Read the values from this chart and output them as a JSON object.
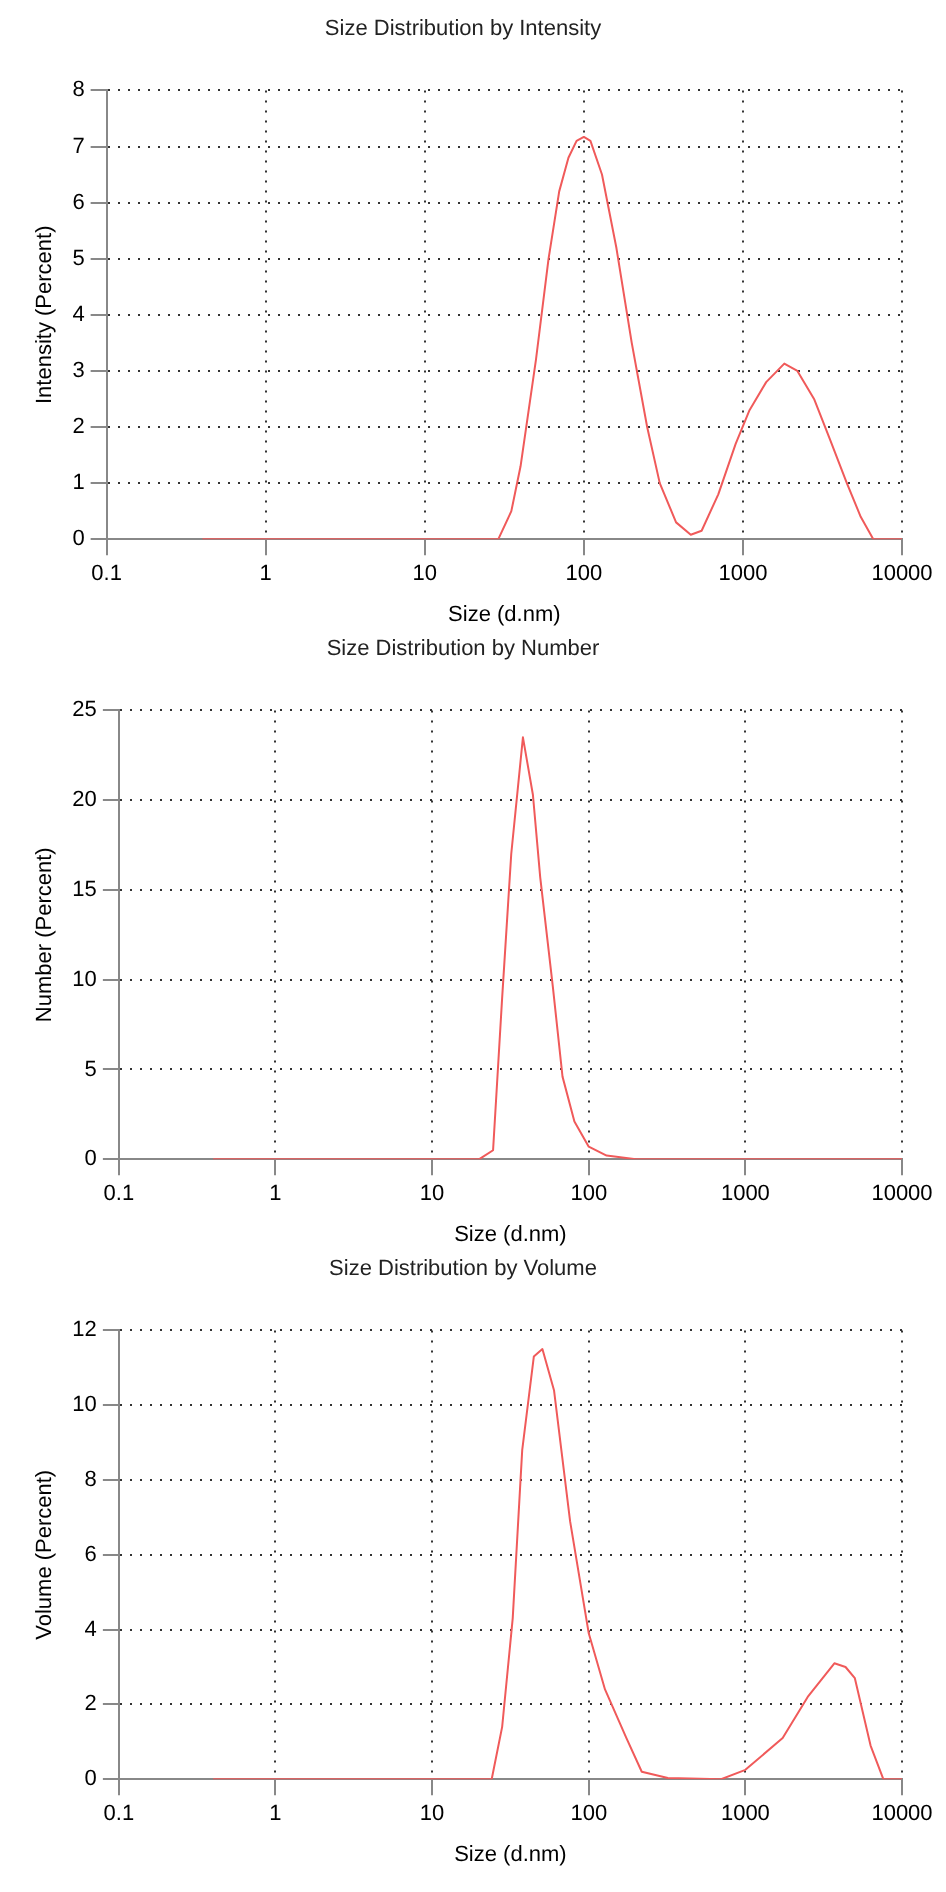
{
  "chart_data": [
    {
      "type": "line",
      "title": "Size Distribution by Intensity",
      "xlabel": "Size (d.nm)",
      "ylabel": "Intensity (Percent)",
      "log": "x",
      "grid": true,
      "marker": "none",
      "xlim": [
        0.1,
        10000
      ],
      "xticks": [
        0.1,
        1,
        10,
        100,
        1000,
        10000
      ],
      "ylim": [
        0,
        8
      ],
      "yticks": [
        0,
        1,
        2,
        3,
        4,
        5,
        6,
        7,
        8
      ],
      "series": [
        {
          "color": "#f05a5a",
          "x": [
            0.4,
            1,
            10,
            29,
            35,
            40,
            50,
            60,
            70,
            80,
            90,
            100,
            110,
            130,
            160,
            200,
            250,
            300,
            380,
            470,
            550,
            700,
            900,
            1100,
            1400,
            1820,
            2200,
            2800,
            3500,
            4500,
            5500,
            6600,
            10000
          ],
          "values": [
            0,
            0,
            0,
            0,
            0.5,
            1.3,
            3.2,
            5,
            6.2,
            6.8,
            7.1,
            7.17,
            7.1,
            6.5,
            5.2,
            3.5,
            2,
            1,
            0.3,
            0.08,
            0.15,
            0.8,
            1.7,
            2.3,
            2.8,
            3.13,
            3,
            2.5,
            1.8,
            1,
            0.4,
            0,
            0
          ]
        }
      ]
    },
    {
      "type": "line",
      "title": "Size Distribution by Number",
      "xlabel": "Size (d.nm)",
      "ylabel": "Number (Percent)",
      "log": "x",
      "grid": true,
      "marker": "none",
      "xlim": [
        0.1,
        10000
      ],
      "xticks": [
        0.1,
        1,
        10,
        100,
        1000,
        10000
      ],
      "ylim": [
        0,
        25
      ],
      "yticks": [
        0,
        5,
        10,
        15,
        20,
        25
      ],
      "series": [
        {
          "color": "#f05a5a",
          "x": [
            0.4,
            1,
            10,
            20,
            24.5,
            28,
            32,
            38,
            44,
            49,
            59,
            68,
            81,
            100,
            130,
            200,
            1000,
            10000
          ],
          "values": [
            0,
            0,
            0,
            0,
            0.5,
            9,
            17,
            23.5,
            20.3,
            15.7,
            9.6,
            4.6,
            2.1,
            0.7,
            0.2,
            0,
            0,
            0
          ]
        }
      ]
    },
    {
      "type": "line",
      "title": "Size Distribution by Volume",
      "xlabel": "Size (d.nm)",
      "ylabel": "Volume (Percent)",
      "log": "x",
      "grid": true,
      "marker": "none",
      "xlim": [
        0.1,
        10000
      ],
      "xticks": [
        0.1,
        1,
        10,
        100,
        1000,
        10000
      ],
      "ylim": [
        0,
        12
      ],
      "yticks": [
        0,
        2,
        4,
        6,
        8,
        10,
        12
      ],
      "series": [
        {
          "color": "#f05a5a",
          "x": [
            0.4,
            1,
            10,
            24,
            28,
            32.7,
            37.6,
            44.6,
            50.6,
            60,
            76,
            100,
            127,
            174,
            218,
            320,
            700,
            1000,
            1730,
            2500,
            3700,
            4360,
            5000,
            6300,
            7600,
            10000
          ],
          "values": [
            0,
            0,
            0,
            0,
            1.4,
            4.3,
            8.8,
            11.3,
            11.5,
            10.4,
            6.9,
            3.9,
            2.4,
            1.1,
            0.2,
            0.03,
            0,
            0.25,
            1.1,
            2.2,
            3.1,
            3,
            2.7,
            0.9,
            0,
            0
          ]
        }
      ]
    }
  ]
}
